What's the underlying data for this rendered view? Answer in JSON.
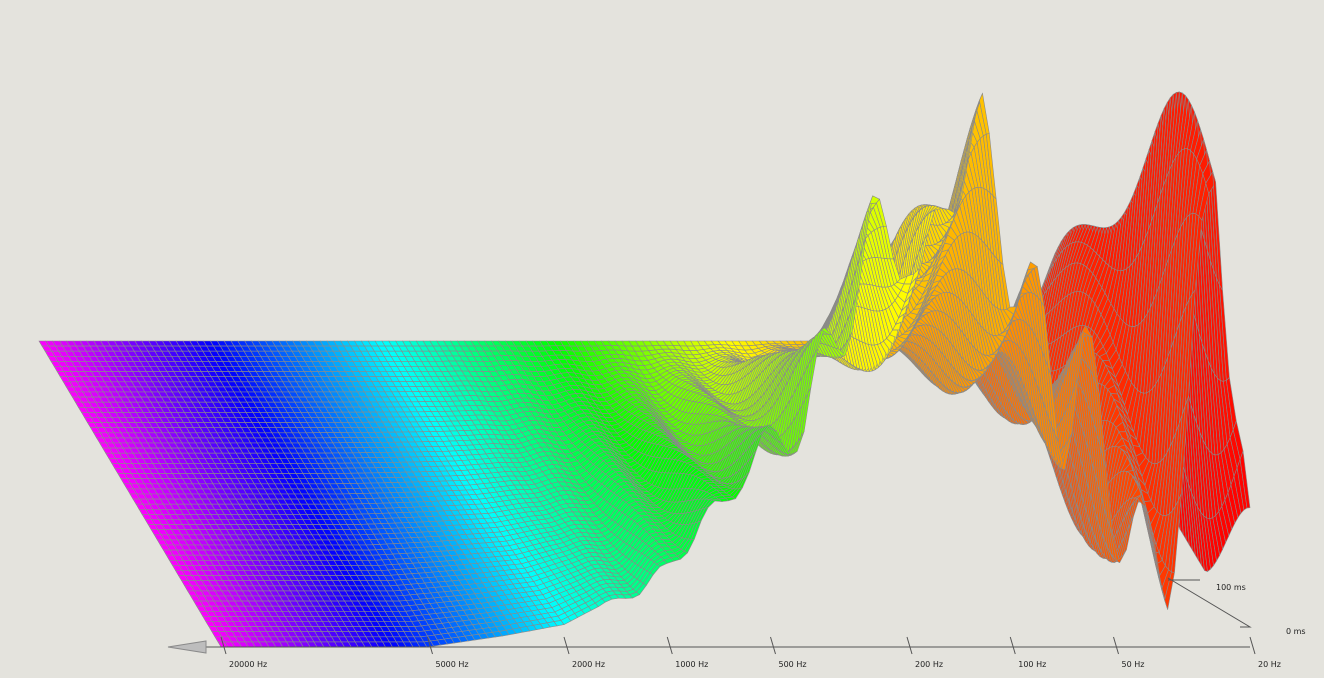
{
  "chart_data": {
    "type": "waterfall-3d",
    "title": "",
    "xlabel": "",
    "ylabel": "",
    "zlabel": "",
    "x_direction": "reversed",
    "x_tick_labels": [
      "20000 Hz",
      "5000 Hz",
      "2000 Hz",
      "1000 Hz",
      "500 Hz",
      "200 Hz",
      "100 Hz",
      "50 Hz",
      "20 Hz"
    ],
    "x_tick_values_hz": [
      20000,
      5000,
      2000,
      1000,
      500,
      200,
      100,
      50,
      20
    ],
    "time_tick_labels": [
      "100 ms",
      "0 ms"
    ],
    "time_range_ms": [
      0,
      100
    ],
    "num_time_slices": 60,
    "colormap_low_to_high_freq": [
      "#ff0000",
      "#ff7a00",
      "#ffff00",
      "#00ff00",
      "#00ffff",
      "#0000ff",
      "#ff00ff"
    ],
    "grid_color": "#8a8a8a",
    "front_slice": {
      "time_ms": 0,
      "freq_hz": [
        20,
        25,
        30,
        35,
        40,
        50,
        60,
        70,
        80,
        100,
        120,
        150,
        180,
        200,
        250,
        300,
        350,
        400,
        500,
        600,
        700,
        800,
        1000,
        1200,
        1500,
        2000,
        3000,
        5000,
        10000,
        20000
      ],
      "relative_level": [
        0.1,
        0.92,
        0.4,
        0.18,
        0.12,
        0.3,
        0.48,
        0.42,
        0.55,
        0.7,
        0.9,
        0.85,
        0.62,
        0.72,
        0.75,
        0.58,
        0.52,
        0.4,
        0.36,
        0.32,
        0.24,
        0.22,
        0.14,
        0.1,
        0.08,
        0.04,
        0.02,
        0.0,
        0.0,
        0.0
      ]
    }
  }
}
